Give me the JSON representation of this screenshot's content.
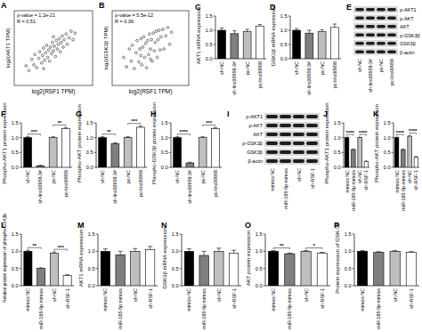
{
  "chart_data": [
    {
      "panel": "A",
      "type": "scatter",
      "annotations": [
        "p-value = 1.2e-21",
        "R = 0.51"
      ],
      "x_label": "log2(RSF1 TPM)",
      "y_label": "log2(AKT1 TPM)",
      "xlim": [
        2,
        10
      ],
      "ylim": [
        2,
        10
      ],
      "tick_labels": false,
      "marker": "circle",
      "color": "#000000",
      "x": [
        3.2,
        3.5,
        3.8,
        4.0,
        4.1,
        4.3,
        4.5,
        4.6,
        4.8,
        4.9,
        5.0,
        5.1,
        5.2,
        5.3,
        5.4,
        5.5,
        5.6,
        5.7,
        5.8,
        5.9,
        6.0,
        6.1,
        6.2,
        6.3,
        6.4,
        6.5,
        6.6,
        6.7,
        6.8,
        6.9,
        7.0,
        7.1,
        7.3,
        7.4,
        7.6,
        7.8,
        8.0,
        8.2,
        5.0,
        6.0
      ],
      "values": [
        4.1,
        3.6,
        4.8,
        4.2,
        5.3,
        3.9,
        4.9,
        5.6,
        4.4,
        5.2,
        6.0,
        4.7,
        5.5,
        6.3,
        5.0,
        5.8,
        4.6,
        6.1,
        5.4,
        6.6,
        5.7,
        6.2,
        5.1,
        6.8,
        5.9,
        6.4,
        7.0,
        5.6,
        6.6,
        7.3,
        6.1,
        6.9,
        7.5,
        6.4,
        7.1,
        7.8,
        6.9,
        7.6,
        3.8,
        7.2
      ]
    },
    {
      "panel": "B",
      "type": "scatter",
      "annotations": [
        "p-value = 5.5e-12",
        "R = 0.36"
      ],
      "x_label": "log2(RSF1 TPM)",
      "y_label": "log2(GSK3β TPM)",
      "xlim": [
        2,
        10
      ],
      "ylim": [
        2,
        10
      ],
      "tick_labels": false,
      "marker": "circle",
      "color": "#000000",
      "x": [
        3.2,
        3.5,
        3.8,
        4.0,
        4.1,
        4.3,
        4.5,
        4.6,
        4.8,
        4.9,
        5.0,
        5.1,
        5.2,
        5.3,
        5.4,
        5.5,
        5.6,
        5.7,
        5.8,
        5.9,
        6.0,
        6.1,
        6.2,
        6.3,
        6.4,
        6.5,
        6.6,
        6.7,
        6.8,
        6.9,
        7.0,
        7.1,
        7.3,
        7.4,
        7.6,
        7.8,
        8.0,
        8.2,
        5.0,
        6.0
      ],
      "values": [
        5.0,
        4.0,
        5.9,
        4.6,
        6.3,
        3.8,
        5.5,
        6.8,
        4.5,
        5.9,
        7.0,
        4.2,
        6.1,
        7.2,
        5.0,
        6.5,
        3.9,
        6.8,
        5.3,
        7.5,
        5.9,
        6.9,
        4.6,
        7.6,
        5.7,
        6.6,
        7.8,
        5.0,
        6.9,
        7.9,
        5.8,
        7.2,
        8.0,
        5.9,
        7.3,
        8.2,
        6.4,
        7.7,
        5.2,
        4.8
      ]
    },
    {
      "panel": "C",
      "type": "bar",
      "y_label": "AKT1 mRNA expression",
      "categories": [
        "sh-NC",
        "sh-linc00958-3#",
        "pc-NC",
        "pc-linc00958"
      ],
      "values": [
        1.0,
        0.88,
        0.95,
        1.15
      ],
      "errors": [
        0.08,
        0.1,
        0.08,
        0.05
      ],
      "colors": [
        "#000000",
        "#7f7f7f",
        "#bfbfbf",
        "#ffffff"
      ],
      "ylim": [
        0,
        1.5
      ],
      "yticks": [
        {
          "value": 0,
          "label": "0.0"
        },
        0.5,
        {
          "value": 1,
          "label": "1.0"
        },
        1.5
      ],
      "annotations": []
    },
    {
      "panel": "D",
      "type": "bar",
      "y_label": "GSK3β mRNA expression",
      "categories": [
        "sh-NC",
        "sh-linc00958-3#",
        "pc-NC",
        "pc-linc00958"
      ],
      "values": [
        1.0,
        0.9,
        0.95,
        1.1
      ],
      "errors": [
        0.06,
        0.1,
        0.07,
        0.12
      ],
      "colors": [
        "#000000",
        "#7f7f7f",
        "#bfbfbf",
        "#ffffff"
      ],
      "ylim": [
        0,
        1.5
      ],
      "yticks": [
        {
          "value": 0,
          "label": "0.0"
        },
        0.5,
        {
          "value": 1,
          "label": "1.0"
        },
        1.5
      ],
      "annotations": []
    },
    {
      "panel": "F",
      "type": "bar",
      "y_label": "Phospho-AKT1 protein expression",
      "categories": [
        "sh-NC",
        "sh-linc00958-3#",
        "pc-NC",
        "pc-linc00958"
      ],
      "values": [
        1.0,
        0.05,
        1.0,
        1.3
      ],
      "errors": [
        0.03,
        0.02,
        0.03,
        0.04
      ],
      "colors": [
        "#000000",
        "#7f7f7f",
        "#bfbfbf",
        "#ffffff"
      ],
      "ylim": [
        0,
        1.5
      ],
      "yticks": [
        {
          "value": 0,
          "label": "0.0"
        },
        0.5,
        {
          "value": 1,
          "label": "1.0"
        },
        1.5
      ],
      "annotations": [
        {
          "text": "***",
          "pair": [
            0,
            1
          ]
        },
        {
          "text": "**",
          "pair": [
            2,
            3
          ]
        }
      ]
    },
    {
      "panel": "G",
      "type": "bar",
      "y_label": "Phospho-AKT protein expression",
      "categories": [
        "sh-NC",
        "sh-linc00958-3#",
        "pc-NC",
        "pc-linc00958"
      ],
      "values": [
        1.0,
        0.8,
        1.0,
        1.35
      ],
      "errors": [
        0.03,
        0.03,
        0.03,
        0.04
      ],
      "colors": [
        "#000000",
        "#7f7f7f",
        "#bfbfbf",
        "#ffffff"
      ],
      "ylim": [
        0,
        1.5
      ],
      "yticks": [
        {
          "value": 0,
          "label": "0.0"
        },
        0.5,
        {
          "value": 1,
          "label": "1.0"
        },
        1.5
      ],
      "annotations": [
        {
          "text": "**",
          "pair": [
            0,
            1
          ]
        },
        {
          "text": "***",
          "pair": [
            2,
            3
          ]
        }
      ]
    },
    {
      "panel": "H",
      "type": "bar",
      "y_label": "Phospho-GSK3β protein expression",
      "categories": [
        "sh-NC",
        "sh-linc00958-3#",
        "pc-NC",
        "pc-linc00958"
      ],
      "values": [
        1.0,
        0.15,
        1.0,
        1.3
      ],
      "errors": [
        0.03,
        0.02,
        0.03,
        0.04
      ],
      "colors": [
        "#000000",
        "#7f7f7f",
        "#bfbfbf",
        "#ffffff"
      ],
      "ylim": [
        0,
        1.5
      ],
      "yticks": [
        {
          "value": 0,
          "label": "0.0"
        },
        0.5,
        {
          "value": 1,
          "label": "1.0"
        },
        1.5
      ],
      "annotations": [
        {
          "text": "****",
          "pair": [
            0,
            1
          ]
        },
        {
          "text": "***",
          "pair": [
            2,
            3
          ]
        }
      ]
    },
    {
      "panel": "J",
      "type": "bar",
      "y_label": "Phospho-AKT1 protein expression",
      "categories": [
        "mimics NC",
        "miR-185-5p mimics",
        "sh-NC",
        "sh-RSF-1"
      ],
      "values": [
        1.0,
        0.6,
        1.0,
        0.2
      ],
      "errors": [
        0.02,
        0.02,
        0.02,
        0.02
      ],
      "colors": [
        "#000000",
        "#7f7f7f",
        "#bfbfbf",
        "#ffffff"
      ],
      "ylim": [
        0,
        1.5
      ],
      "yticks": [
        {
          "value": 0,
          "label": "0.0"
        },
        0.5,
        {
          "value": 1,
          "label": "1.0"
        },
        1.5
      ],
      "annotations": [
        {
          "text": "****",
          "pair": [
            0,
            1
          ]
        },
        {
          "text": "****",
          "pair": [
            2,
            3
          ]
        }
      ]
    },
    {
      "panel": "K",
      "type": "bar",
      "y_label": "Phospho-AKT protein expression",
      "categories": [
        "mimics NC",
        "miR-185-5p mimics",
        "sh-NC",
        "sh-RSF-1"
      ],
      "values": [
        1.0,
        0.6,
        1.05,
        0.35
      ],
      "errors": [
        0.02,
        0.02,
        0.02,
        0.02
      ],
      "colors": [
        "#000000",
        "#7f7f7f",
        "#bfbfbf",
        "#ffffff"
      ],
      "ylim": [
        0,
        1.5
      ],
      "yticks": [
        {
          "value": 0,
          "label": "0.0"
        },
        0.5,
        {
          "value": 1,
          "label": "1.0"
        },
        1.5
      ],
      "annotations": [
        {
          "text": "****",
          "pair": [
            0,
            1
          ]
        },
        {
          "text": "****",
          "pair": [
            2,
            3
          ]
        }
      ]
    },
    {
      "panel": "L",
      "type": "bar",
      "y_label": "Relative protein expression of phospho-GSK3b",
      "categories": [
        "mimics NC",
        "miR-185-5p mimics",
        "sh-NC",
        "sh-RSF-1"
      ],
      "values": [
        1.0,
        0.5,
        0.95,
        0.3
      ],
      "errors": [
        0.03,
        0.02,
        0.03,
        0.02
      ],
      "colors": [
        "#000000",
        "#7f7f7f",
        "#bfbfbf",
        "#ffffff"
      ],
      "ylim": [
        0,
        1.5
      ],
      "yticks": [
        {
          "value": 0,
          "label": "0.0"
        },
        0.5,
        {
          "value": 1,
          "label": "1.0"
        },
        1.5
      ],
      "annotations": [
        {
          "text": "**",
          "pair": [
            0,
            1
          ]
        },
        {
          "text": "***",
          "pair": [
            2,
            3
          ]
        }
      ]
    },
    {
      "panel": "M",
      "type": "bar",
      "y_label": "AKT1 mRNA expression",
      "categories": [
        "mimics NC",
        "miR-185-5p mimics",
        "sh-NC",
        "sh-RSF-1"
      ],
      "values": [
        1.0,
        0.9,
        1.0,
        1.05
      ],
      "errors": [
        0.07,
        0.1,
        0.08,
        0.09
      ],
      "colors": [
        "#000000",
        "#7f7f7f",
        "#bfbfbf",
        "#ffffff"
      ],
      "ylim": [
        0,
        1.5
      ],
      "yticks": [
        {
          "value": 0,
          "label": "0.0"
        },
        0.5,
        {
          "value": 1,
          "label": "1.0"
        },
        1.5
      ],
      "annotations": []
    },
    {
      "panel": "N",
      "type": "bar",
      "y_label": "GSK3β mRNA expression",
      "categories": [
        "mimics NC",
        "miR-185-5p mimics",
        "sh-NC",
        "sh-RSF-1"
      ],
      "values": [
        1.0,
        0.88,
        1.0,
        0.95
      ],
      "errors": [
        0.07,
        0.12,
        0.09,
        0.08
      ],
      "colors": [
        "#000000",
        "#7f7f7f",
        "#bfbfbf",
        "#ffffff"
      ],
      "ylim": [
        0,
        1.5
      ],
      "yticks": [
        {
          "value": 0,
          "label": "0.0"
        },
        0.5,
        {
          "value": 1,
          "label": "1.0"
        },
        1.5
      ],
      "annotations": []
    },
    {
      "panel": "O",
      "type": "bar",
      "y_label": "AKT protein expression",
      "categories": [
        "mimics NC",
        "miR-185-5p mimics",
        "sh-NC",
        "sh-RSF-1"
      ],
      "values": [
        1.0,
        0.93,
        1.0,
        0.95
      ],
      "errors": [
        0.02,
        0.02,
        0.02,
        0.02
      ],
      "colors": [
        "#000000",
        "#7f7f7f",
        "#bfbfbf",
        "#ffffff"
      ],
      "ylim": [
        0,
        1.5
      ],
      "yticks": [
        {
          "value": 0,
          "label": "0.0"
        },
        0.5,
        {
          "value": 1,
          "label": "1.0"
        },
        1.5
      ],
      "annotations": [
        {
          "text": "**",
          "pair": [
            0,
            1
          ]
        },
        {
          "text": "*",
          "pair": [
            2,
            3
          ]
        }
      ]
    },
    {
      "panel": "P",
      "type": "bar",
      "y_label": "Protein expression of GSK-3β",
      "categories": [
        "mimics NC",
        "miR-185-5p mimics",
        "sh-NC",
        "sh-RSF-1"
      ],
      "values": [
        1.0,
        0.97,
        1.0,
        0.97
      ],
      "errors": [
        0.02,
        0.02,
        0.02,
        0.02
      ],
      "colors": [
        "#000000",
        "#7f7f7f",
        "#bfbfbf",
        "#ffffff"
      ],
      "ylim": [
        0,
        1.5
      ],
      "yticks": [
        {
          "value": 0,
          "label": "0.0"
        },
        0.5,
        {
          "value": 1,
          "label": "1.0"
        },
        1.5
      ],
      "annotations": []
    }
  ],
  "blots": [
    {
      "panel": "E",
      "rows": [
        "p-AKT1",
        "p-AKT",
        "AKT",
        "p-GSK3β",
        "GSK3β",
        "β-actin"
      ],
      "lanes": [
        "sh-NC",
        "sh-linc00958-3#",
        "pc-NC",
        "pc-linc00958"
      ]
    },
    {
      "panel": "I",
      "rows": [
        "p-AKT1",
        "p-AKT",
        "AKT",
        "p-GSK3β",
        "GSK3β",
        "β-actin"
      ],
      "lanes": [
        "mimics NC",
        "miR-185-5p mimics",
        "sh-NC",
        "sh-RSF-1"
      ]
    }
  ]
}
